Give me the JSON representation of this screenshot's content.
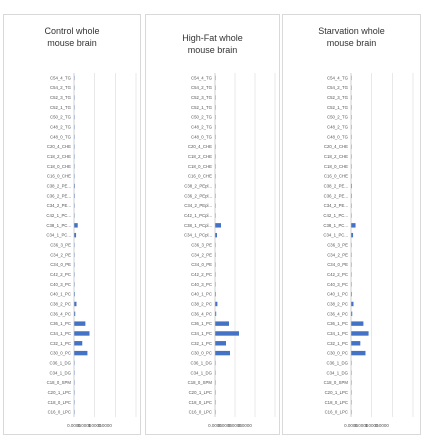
{
  "colors": {
    "bar": "#4472c4",
    "grid": "#d9d9d9",
    "axis": "#bfbfbf"
  },
  "chart_data": [
    {
      "type": "bar",
      "orientation": "horizontal",
      "title": "Control whole\nmouse brain",
      "categories": [
        "C54_4_TG",
        "C54_2_TG",
        "C52_3_TG",
        "C52_1_TG",
        "C50_2_TG",
        "C48_2_TG",
        "C48_0_TG",
        "C20_4_CHE",
        "C18_2_CHE",
        "C18_0_CHE",
        "C16_0_CHE",
        "C38_2_PE...",
        "C36_2_PE...",
        "C34_2_PE...",
        "C42_1_PC...",
        "C38_1_PC...",
        "C34_1_PC...",
        "C36_3_PE",
        "C34_2_PE",
        "C34_0_PE",
        "C42_2_PC",
        "C40_3_PC",
        "C40_1_PC",
        "C38_2_PC",
        "C36_4_PC",
        "C36_1_PC",
        "C34_1_PC",
        "C32_1_PC",
        "C30_0_PC",
        "C36_1_DG",
        "C34_1_DG",
        "C18_0_SPM",
        "C20_1_LPC",
        "C18_0_LPC",
        "C16_0_LPC"
      ],
      "values": [
        0.01,
        0.005,
        0.02,
        0.005,
        0.005,
        0.01,
        0.005,
        0.005,
        0.005,
        0.005,
        0.005,
        0.04,
        0.035,
        0.03,
        0.02,
        0.18,
        0.1,
        0.02,
        0.02,
        0.02,
        0.02,
        0.03,
        0.04,
        0.12,
        0.06,
        0.55,
        0.75,
        0.4,
        0.65,
        0.02,
        0.02,
        0.02,
        0.02,
        0.02,
        0.02
      ],
      "tick_labels": [
        "0.0000",
        "0.0000",
        "0.0000",
        "0.0000"
      ],
      "xlim": [
        0,
        3
      ],
      "grid": true
    },
    {
      "type": "bar",
      "orientation": "horizontal",
      "title": "High-Fat whole\nmouse brain",
      "categories": [
        "C54_4_TG",
        "C54_2_TG",
        "C52_3_TG",
        "C52_1_TG",
        "C50_2_TG",
        "C48_2_TG",
        "C48_0_TG",
        "C20_4_CHE",
        "C18_2_CHE",
        "C18_0_CHE",
        "C16_0_CHE",
        "C38_2_PEpl...",
        "C36_2_PEpl...",
        "C34_2_PEpl...",
        "C42_1_PCpl...",
        "C38_1_PCpl...",
        "C34_1_PCpl...",
        "C36_3_PE",
        "C34_2_PE",
        "C34_0_PE",
        "C42_2_PC",
        "C40_3_PC",
        "C40_1_PC",
        "C38_2_PC",
        "C36_4_PC",
        "C36_1_PC",
        "C34_1_PC",
        "C32_1_PC",
        "C30_0_PC",
        "C36_1_DG",
        "C34_1_DG",
        "C18_0_SPM",
        "C20_1_LPC",
        "C18_0_LPC",
        "C16_0_LPC"
      ],
      "values": [
        0.01,
        0.005,
        0.02,
        0.005,
        0.005,
        0.01,
        0.005,
        0.005,
        0.005,
        0.005,
        0.005,
        0.03,
        0.03,
        0.02,
        0.02,
        0.3,
        0.1,
        0.02,
        0.02,
        0.02,
        0.02,
        0.03,
        0.04,
        0.12,
        0.06,
        0.7,
        1.2,
        0.55,
        0.75,
        0.02,
        0.02,
        0.02,
        0.02,
        0.02,
        0.02
      ],
      "tick_labels": [
        "0.0000",
        "0.0000",
        "0.0000",
        "0.0000"
      ],
      "xlim": [
        0,
        3
      ],
      "grid": true
    },
    {
      "type": "bar",
      "orientation": "horizontal",
      "title": "Starvation whole\nmouse brain",
      "categories": [
        "C54_4_TG",
        "C54_2_TG",
        "C52_3_TG",
        "C52_1_TG",
        "C50_2_TG",
        "C48_2_TG",
        "C48_0_TG",
        "C20_4_CHE",
        "C18_2_CHE",
        "C18_0_CHE",
        "C16_0_CHE",
        "C38_2_PE...",
        "C36_2_PE...",
        "C34_2_PE...",
        "C42_1_PC...",
        "C38_1_PC...",
        "C34_1_PC...",
        "C36_3_PE",
        "C34_2_PE",
        "C34_0_PE",
        "C42_2_PC",
        "C40_3_PC",
        "C40_1_PC",
        "C38_2_PC",
        "C36_4_PC",
        "C36_1_PC",
        "C34_1_PC",
        "C32_1_PC",
        "C30_0_PC",
        "C36_1_DG",
        "C34_1_DG",
        "C18_0_SPM",
        "C20_1_LPC",
        "C18_0_LPC",
        "C16_0_LPC"
      ],
      "values": [
        0.01,
        0.005,
        0.02,
        0.005,
        0.005,
        0.01,
        0.005,
        0.005,
        0.005,
        0.005,
        0.005,
        0.04,
        0.035,
        0.03,
        0.02,
        0.22,
        0.1,
        0.02,
        0.02,
        0.02,
        0.02,
        0.03,
        0.04,
        0.12,
        0.06,
        0.6,
        0.85,
        0.45,
        0.7,
        0.02,
        0.02,
        0.02,
        0.02,
        0.02,
        0.02
      ],
      "tick_labels": [
        "0.0000",
        "0.0000",
        "0.0000",
        "0.0000"
      ],
      "xlim": [
        0,
        3
      ],
      "grid": true
    }
  ]
}
